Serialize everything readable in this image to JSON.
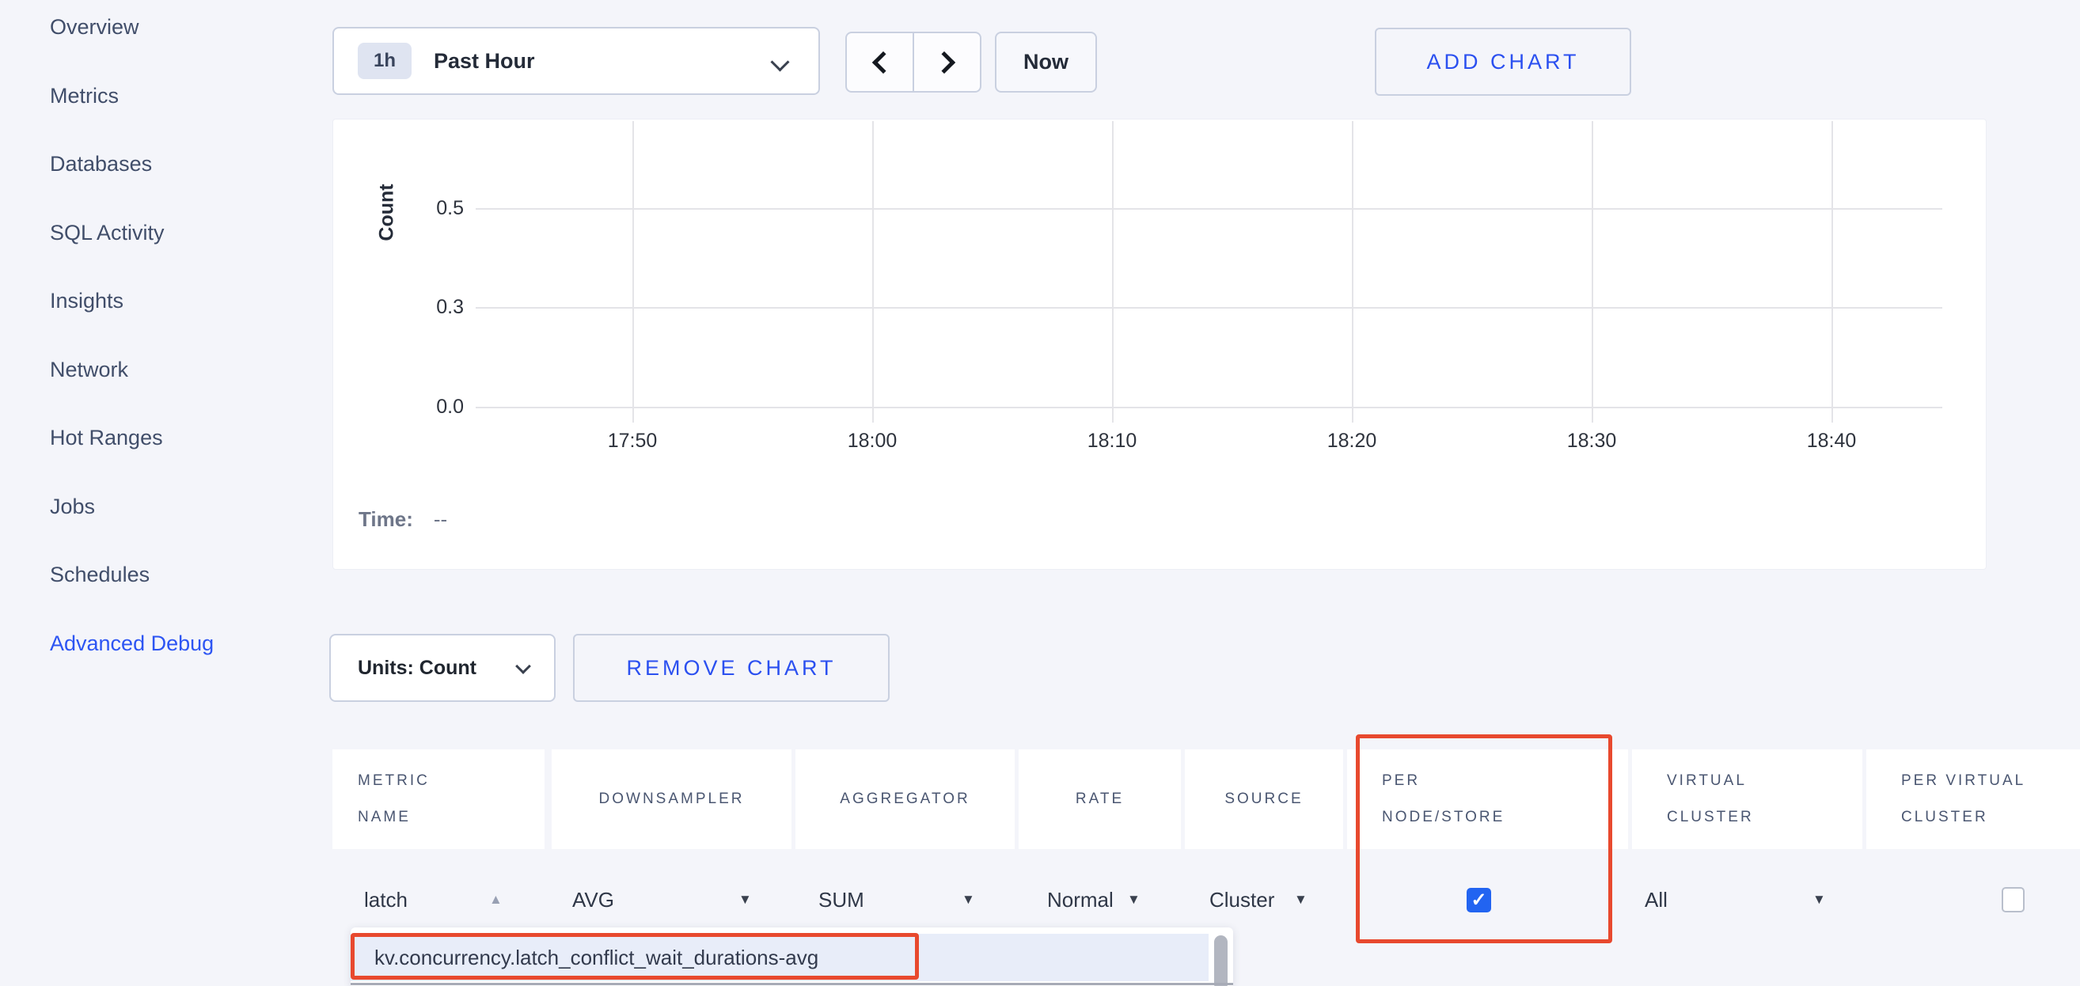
{
  "sidebar": {
    "items": [
      {
        "label": "Overview",
        "active": false
      },
      {
        "label": "Metrics",
        "active": false
      },
      {
        "label": "Databases",
        "active": false
      },
      {
        "label": "SQL Activity",
        "active": false
      },
      {
        "label": "Insights",
        "active": false
      },
      {
        "label": "Network",
        "active": false
      },
      {
        "label": "Hot Ranges",
        "active": false
      },
      {
        "label": "Jobs",
        "active": false
      },
      {
        "label": "Schedules",
        "active": false
      },
      {
        "label": "Advanced Debug",
        "active": true
      }
    ]
  },
  "toolbar": {
    "time_range_badge": "1h",
    "time_range_label": "Past Hour",
    "now_label": "Now",
    "add_chart_label": "ADD CHART"
  },
  "chart": {
    "ylabel": "Count",
    "y_ticks": [
      "0.5",
      "0.3",
      "0.0"
    ],
    "x_ticks": [
      "17:50",
      "18:00",
      "18:10",
      "18:20",
      "18:30",
      "18:40"
    ],
    "time_label": "Time:",
    "time_value": "--",
    "series": []
  },
  "chart_controls": {
    "units_label": "Units: Count",
    "remove_label": "REMOVE CHART"
  },
  "table": {
    "columns": [
      {
        "line1": "METRIC",
        "line2": "NAME"
      },
      {
        "line1": "DOWNSAMPLER",
        "line2": ""
      },
      {
        "line1": "AGGREGATOR",
        "line2": ""
      },
      {
        "line1": "RATE",
        "line2": ""
      },
      {
        "line1": "SOURCE",
        "line2": ""
      },
      {
        "line1": "PER",
        "line2": "NODE/STORE"
      },
      {
        "line1": "VIRTUAL",
        "line2": "CLUSTER"
      },
      {
        "line1": "PER VIRTUAL",
        "line2": "CLUSTER"
      }
    ],
    "row": {
      "metric_name": "latch",
      "downsampler": "AVG",
      "aggregator": "SUM",
      "rate": "Normal",
      "source": "Cluster",
      "per_node_store_checked": true,
      "virtual_cluster": "All",
      "per_virtual_cluster_checked": false
    }
  },
  "dropdown": {
    "items": [
      "kv.concurrency.latch_conflict_wait_durations-avg"
    ]
  },
  "icons": {
    "caret_down": "▼",
    "caret_up": "▲",
    "check": "✓"
  },
  "colors": {
    "accent_blue": "#2b50f0",
    "active_link_blue": "#2d55f3",
    "annotation_red": "#e8492e",
    "checkbox_blue": "#2264f1"
  }
}
